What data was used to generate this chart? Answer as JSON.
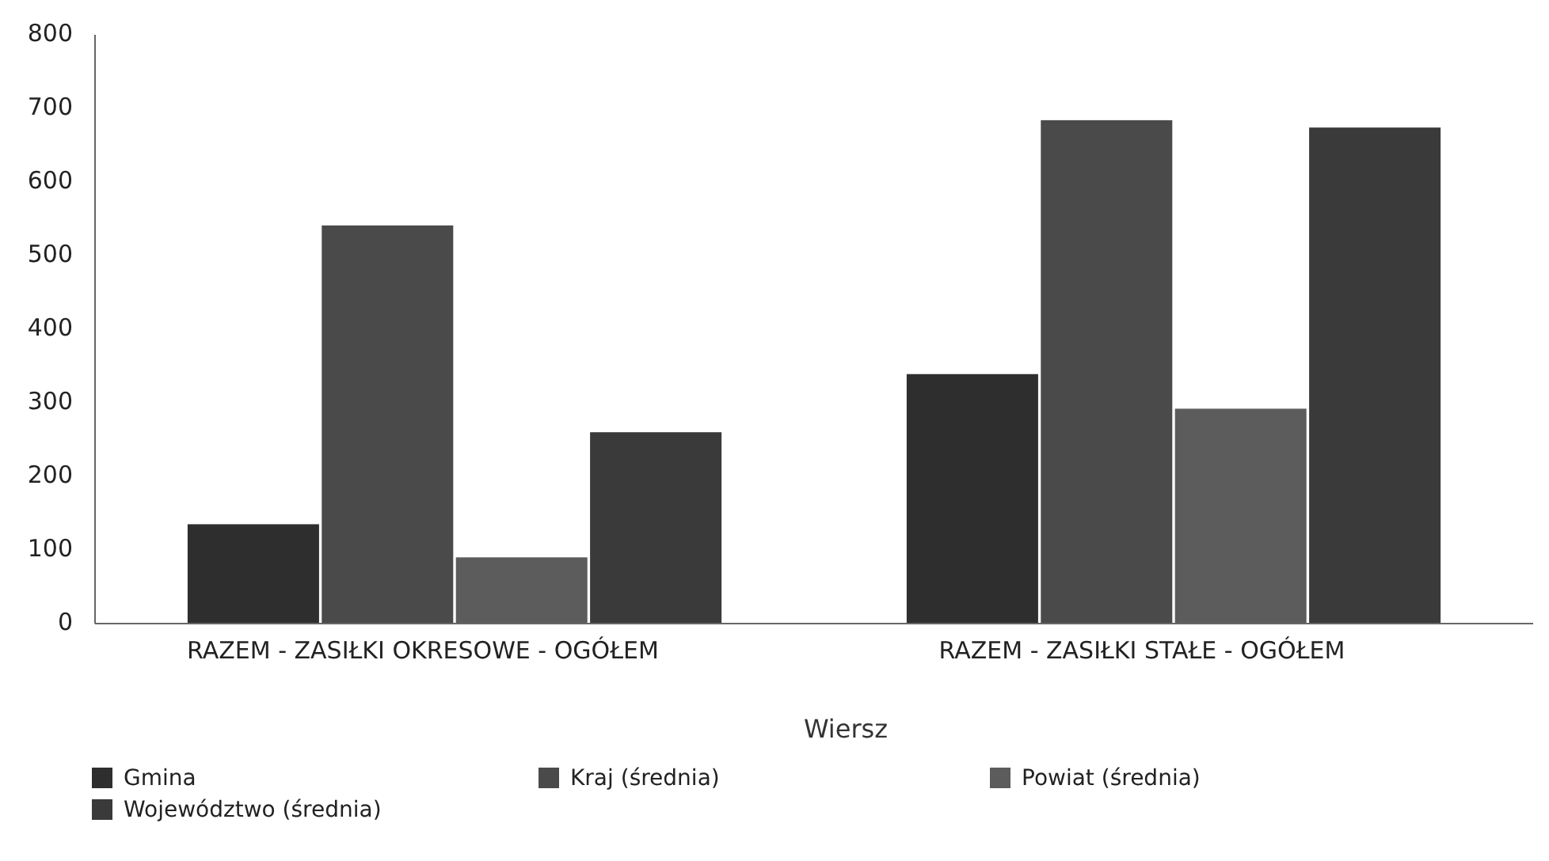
{
  "chart_data": {
    "type": "bar",
    "xlabel": "Wiersz",
    "categories": [
      "RAZEM -  ZASIŁKI OKRESOWE - OGÓŁEM",
      "RAZEM -  ZASIŁKI STAŁE - OGÓŁEM"
    ],
    "series": [
      {
        "name": "Gmina",
        "color": "#2e2e2e",
        "values": [
          135,
          339
        ]
      },
      {
        "name": "Kraj (średnia)",
        "color": "#4a4a4a",
        "values": [
          541,
          684
        ]
      },
      {
        "name": "Powiat (średnia)",
        "color": "#5c5c5c",
        "values": [
          90,
          292
        ]
      },
      {
        "name": "Województwo (średnia)",
        "color": "#3a3a3a",
        "values": [
          260,
          674
        ]
      }
    ],
    "ylim": [
      0,
      800
    ],
    "yticks": [
      0,
      100,
      200,
      300,
      400,
      500,
      600,
      700,
      800
    ],
    "grid": false,
    "legend": "bottom"
  }
}
